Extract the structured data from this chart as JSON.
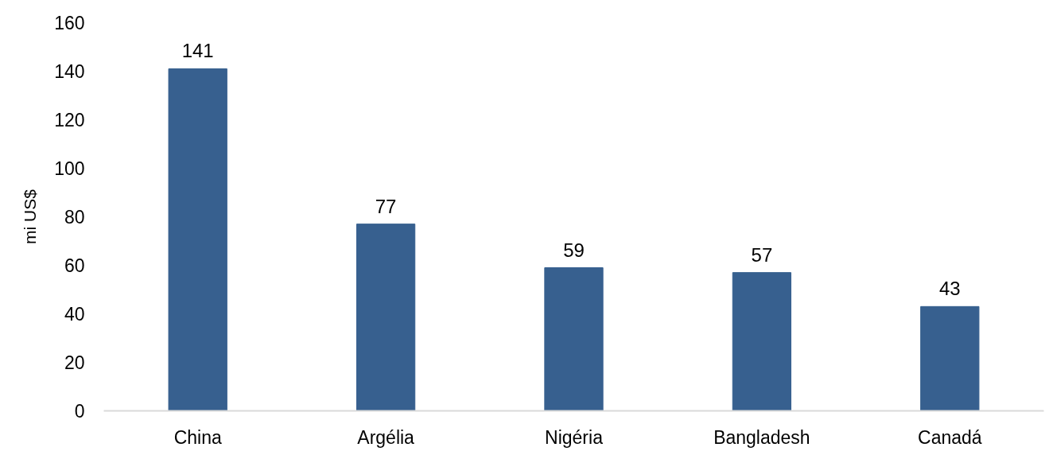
{
  "chart_data": {
    "type": "bar",
    "ylabel": "mi US$",
    "categories": [
      "China",
      "Argélia",
      "Nigéria",
      "Bangladesh",
      "Canadá"
    ],
    "values": [
      141,
      77,
      59,
      57,
      43
    ],
    "color": "#37608f",
    "ylim": [
      0,
      160
    ],
    "yticks": [
      0,
      20,
      40,
      60,
      80,
      100,
      120,
      140,
      160
    ],
    "grid": false,
    "data_labels": true
  }
}
